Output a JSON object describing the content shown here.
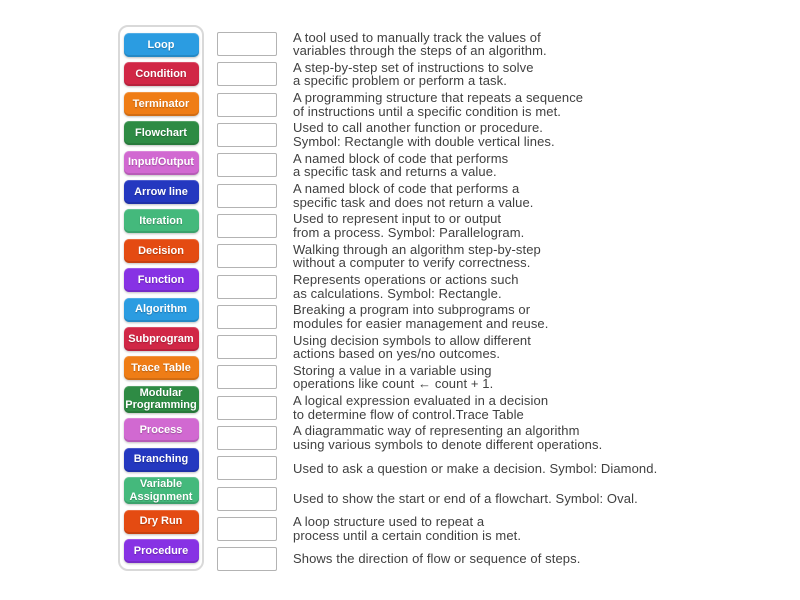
{
  "activity": {
    "type_label": "match-up",
    "term_text_color": "#ffffff",
    "definition_text_color": "#404040"
  },
  "colors": {
    "blue": "#2b9ce1",
    "red": "#d12746",
    "orange": "#ef7d16",
    "green": "#2e8b44",
    "orchid": "#d169d1",
    "darkblue": "#2438c0",
    "seagreen": "#44b97c",
    "orangered": "#e44b12",
    "purple": "#8732e4"
  },
  "terms": [
    {
      "label": "Loop",
      "color": "blue"
    },
    {
      "label": "Condition",
      "color": "red"
    },
    {
      "label": "Terminator",
      "color": "orange"
    },
    {
      "label": "Flowchart",
      "color": "green"
    },
    {
      "label": "Input/Output",
      "color": "orchid"
    },
    {
      "label": "Arrow line",
      "color": "darkblue"
    },
    {
      "label": "Iteration",
      "color": "seagreen"
    },
    {
      "label": "Decision",
      "color": "orangered"
    },
    {
      "label": "Function",
      "color": "purple"
    },
    {
      "label": "Algorithm",
      "color": "blue"
    },
    {
      "label": "Subprogram",
      "color": "red"
    },
    {
      "label": "Trace Table",
      "color": "orange"
    },
    {
      "label": "Modular Programming",
      "color": "green"
    },
    {
      "label": "Process",
      "color": "orchid"
    },
    {
      "label": "Branching",
      "color": "darkblue"
    },
    {
      "label": "Variable Assignment",
      "color": "seagreen"
    },
    {
      "label": "Dry Run",
      "color": "orangered"
    },
    {
      "label": "Procedure",
      "color": "purple"
    }
  ],
  "definitions": [
    {
      "lines": [
        "A tool used to manually track the values of",
        "variables through the steps of an algorithm."
      ]
    },
    {
      "lines": [
        "A step-by-step set of instructions to solve",
        "a specific problem or perform a task."
      ]
    },
    {
      "lines": [
        "A programming structure that repeats a sequence",
        "of instructions until a specific condition is met."
      ]
    },
    {
      "lines": [
        "Used to call another function or procedure.",
        "Symbol: Rectangle with double vertical lines."
      ]
    },
    {
      "lines": [
        "A named block of code that performs",
        "a specific task and returns a value."
      ]
    },
    {
      "lines": [
        "A named block of code that performs a",
        "specific task and does not return a value."
      ]
    },
    {
      "lines": [
        "Used to represent input to or output",
        "from a process. Symbol: Parallelogram."
      ]
    },
    {
      "lines": [
        "Walking through an algorithm step-by-step",
        "without a computer to verify correctness."
      ]
    },
    {
      "lines": [
        "Represents operations or actions such",
        "as calculations. Symbol: Rectangle."
      ]
    },
    {
      "lines": [
        "Breaking a program into subprograms or",
        "modules for easier management and reuse."
      ]
    },
    {
      "lines": [
        "Using decision symbols to allow different",
        "actions based on yes/no outcomes."
      ]
    },
    {
      "lines": [
        "Storing a value in a variable using",
        "operations like count ← count + 1."
      ]
    },
    {
      "lines": [
        "A logical expression evaluated in a decision",
        "to determine flow of control.Trace Table"
      ]
    },
    {
      "lines": [
        "A diagrammatic way of representing an algorithm",
        "using various symbols to denote different operations."
      ]
    },
    {
      "lines": [
        "Used to ask a question or make a decision. Symbol: Diamond."
      ]
    },
    {
      "lines": [
        "Used to show the start or end of a flowchart. Symbol: Oval."
      ]
    },
    {
      "lines": [
        "A loop structure used to repeat a",
        "process until a certain condition is met."
      ]
    },
    {
      "lines": [
        "Shows the direction of flow or sequence of steps."
      ]
    }
  ]
}
